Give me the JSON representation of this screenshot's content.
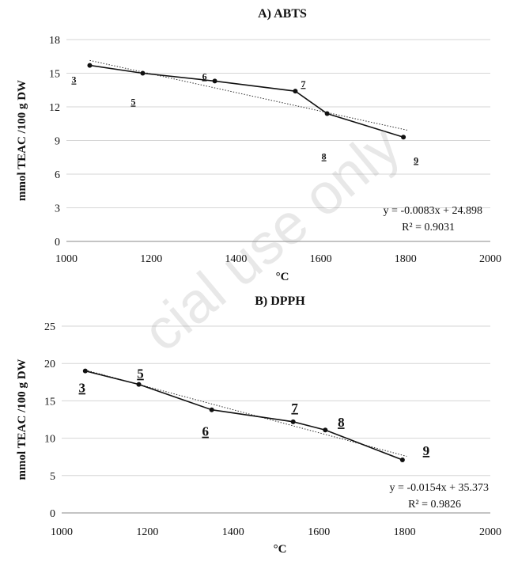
{
  "watermark": "cial use only",
  "chart_data": [
    {
      "type": "line",
      "title": "A) ABTS",
      "xlabel": "°C",
      "ylabel": "mmol TEAC /100 g DW",
      "xlim": [
        1000,
        2000
      ],
      "ylim": [
        0,
        18
      ],
      "xticks": [
        "1000",
        "1200",
        "1400",
        "1600",
        "1800",
        "2000"
      ],
      "yticks": [
        "0",
        "3",
        "6",
        "9",
        "12",
        "15",
        "18"
      ],
      "grid": true,
      "series": [
        {
          "x": [
            1055,
            1180,
            1350,
            1540,
            1615,
            1795
          ],
          "y": [
            15.7,
            15.0,
            14.3,
            13.4,
            11.4,
            9.3
          ],
          "labels": [
            "3",
            "5",
            "6",
            "7",
            "8",
            "9"
          ]
        }
      ],
      "trendline": {
        "type": "linear",
        "slope": -0.0083,
        "intercept": 24.898,
        "equation": "y = -0.0083x + 24.898",
        "r2": "R² = 0.9031"
      }
    },
    {
      "type": "line",
      "title": "B) DPPH",
      "xlabel": "°C",
      "ylabel": "mmol TEAC /100 g DW",
      "xlim": [
        1000,
        2000
      ],
      "ylim": [
        0,
        25
      ],
      "xticks": [
        "1000",
        "1200",
        "1400",
        "1600",
        "1800",
        "2000"
      ],
      "yticks": [
        "0",
        "5",
        "10",
        "15",
        "20",
        "25"
      ],
      "grid": true,
      "series": [
        {
          "x": [
            1055,
            1180,
            1350,
            1540,
            1615,
            1795
          ],
          "y": [
            19.0,
            17.2,
            13.8,
            12.2,
            11.1,
            7.1
          ],
          "labels": [
            "3",
            "5",
            "6",
            "7",
            "8",
            "9"
          ]
        }
      ],
      "trendline": {
        "type": "linear",
        "slope": -0.0154,
        "intercept": 35.373,
        "equation": "y = -0.0154x + 35.373",
        "r2": "R² = 0.9826"
      }
    }
  ]
}
